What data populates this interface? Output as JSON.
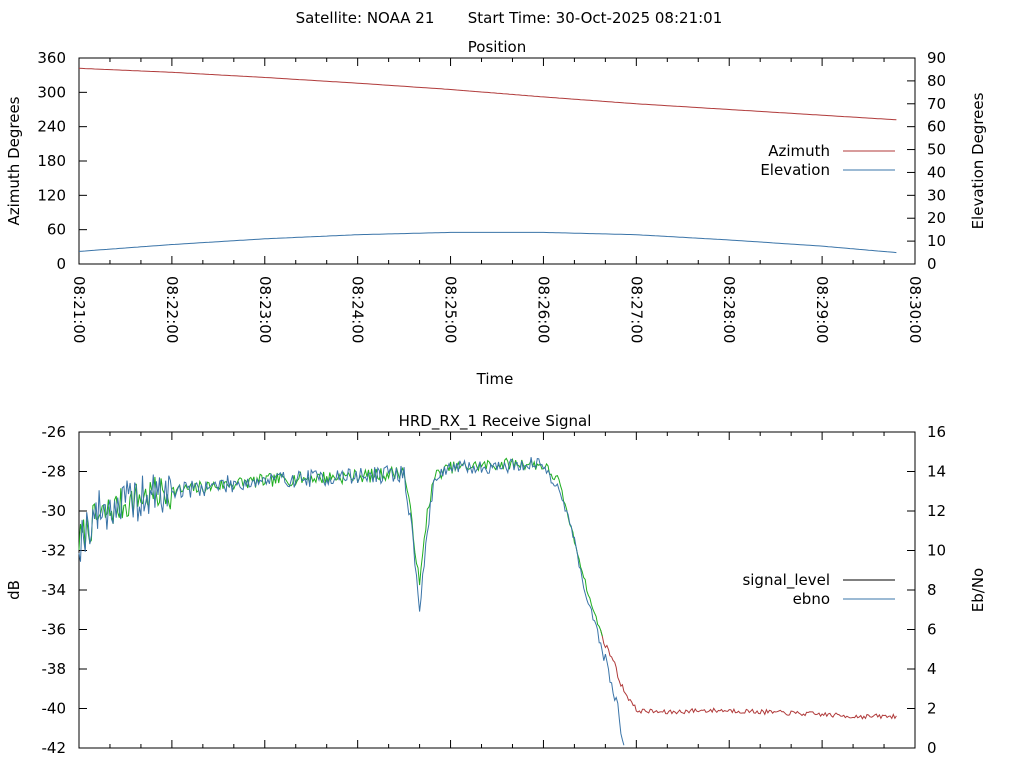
{
  "header": {
    "satellite": "Satellite: NOAA 21",
    "start_time": "Start Time: 30-Oct-2025 08:21:01"
  },
  "colors": {
    "azimuth": "#b03a3a",
    "elevation": "#3a74a8",
    "signal_green": "#1fae1f",
    "signal_red": "#b03a3a",
    "ebno": "#3a74a8",
    "legend_signal": "#000000"
  },
  "chart_data": [
    {
      "type": "line",
      "title": "Position",
      "xlabel": "Time",
      "ylabel": "Azimuth Degrees",
      "y2label": "Elevation Degrees",
      "x_ticks": [
        "08:21:00",
        "08:22:00",
        "08:23:00",
        "08:24:00",
        "08:25:00",
        "08:26:00",
        "08:27:00",
        "08:28:00",
        "08:29:00",
        "08:30:00"
      ],
      "xlim": [
        0,
        540
      ],
      "ylim": [
        0,
        360
      ],
      "y_ticks": [
        "0",
        "60",
        "120",
        "180",
        "240",
        "300",
        "360"
      ],
      "y2lim": [
        0,
        90
      ],
      "y2_ticks": [
        "0",
        "10",
        "20",
        "30",
        "40",
        "50",
        "60",
        "70",
        "80",
        "90"
      ],
      "legend_position": "right",
      "series": [
        {
          "name": "Azimuth",
          "axis": "y",
          "x": [
            0,
            60,
            120,
            180,
            240,
            300,
            360,
            420,
            480,
            528
          ],
          "values": [
            342,
            335,
            326,
            316,
            305,
            292,
            280,
            270,
            260,
            252
          ]
        },
        {
          "name": "Elevation",
          "axis": "y2",
          "x": [
            0,
            60,
            120,
            180,
            240,
            300,
            360,
            420,
            480,
            528
          ],
          "values": [
            5.5,
            8.5,
            11,
            12.8,
            13.8,
            13.8,
            12.8,
            10.5,
            7.8,
            5
          ]
        }
      ]
    },
    {
      "type": "line",
      "title": "HRD_RX_1 Receive Signal",
      "ylabel": "dB",
      "y2label": "Eb/No",
      "xlim": [
        0,
        540
      ],
      "ylim": [
        -42,
        -26
      ],
      "y_ticks": [
        "-42",
        "-40",
        "-38",
        "-36",
        "-34",
        "-32",
        "-30",
        "-28",
        "-26"
      ],
      "y2lim": [
        0,
        16
      ],
      "y2_ticks": [
        "0",
        "2",
        "4",
        "6",
        "8",
        "10",
        "12",
        "14",
        "16"
      ],
      "legend_position": "right",
      "series": [
        {
          "name": "signal_level",
          "axis": "y",
          "x": [
            0,
            10,
            20,
            30,
            40,
            60,
            80,
            100,
            130,
            160,
            190,
            210,
            215,
            220,
            225,
            230,
            240,
            260,
            280,
            290,
            300,
            310,
            320,
            330,
            340,
            345,
            350,
            360,
            380,
            400,
            420,
            450,
            480,
            500,
            528
          ],
          "values": [
            -31.5,
            -30.5,
            -30,
            -29.6,
            -29.3,
            -29,
            -28.8,
            -28.6,
            -28.4,
            -28.3,
            -28.2,
            -28.0,
            -30.5,
            -33.8,
            -30,
            -28.2,
            -27.8,
            -27.7,
            -27.6,
            -27.6,
            -27.7,
            -28.5,
            -31.5,
            -34.5,
            -36.8,
            -37.5,
            -38.8,
            -40.1,
            -40.2,
            -40.1,
            -40.1,
            -40.2,
            -40.3,
            -40.4,
            -40.4
          ]
        },
        {
          "name": "ebno",
          "axis": "y2",
          "x": [
            0,
            10,
            20,
            30,
            40,
            60,
            80,
            100,
            130,
            160,
            190,
            210,
            215,
            220,
            225,
            230,
            240,
            260,
            280,
            290,
            300,
            310,
            320,
            330,
            340,
            348,
            352
          ],
          "values": [
            10.5,
            11.8,
            12.2,
            12.4,
            12.6,
            13.0,
            13.2,
            13.4,
            13.6,
            13.7,
            13.8,
            13.9,
            11,
            7,
            11,
            13.8,
            14.2,
            14.2,
            14.3,
            14.4,
            14.3,
            13.2,
            10.5,
            7,
            4.5,
            2.0,
            0
          ]
        }
      ]
    }
  ]
}
